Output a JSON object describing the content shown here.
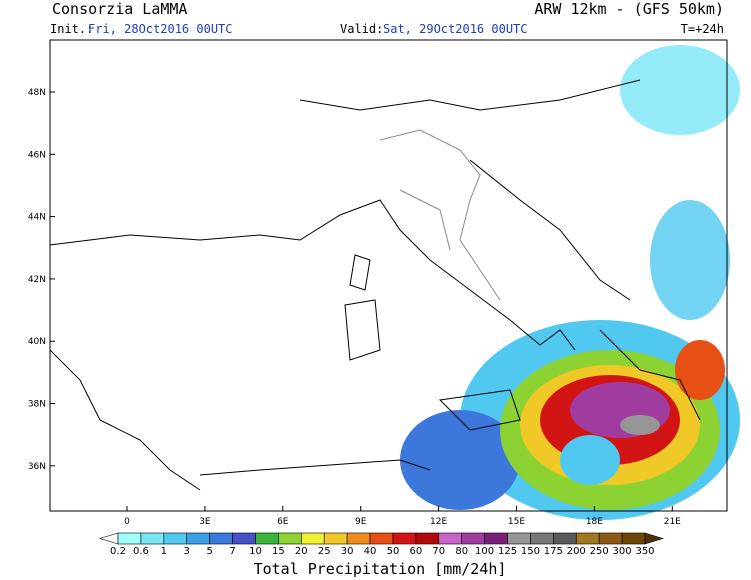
{
  "header": {
    "source": "Consorzia LaMMA",
    "model": "ARW 12km - (GFS 50km)",
    "init_label": "Init.:",
    "init_value": "Fri, 28Oct2016 00UTC",
    "valid_label": "Valid:",
    "valid_value": "Sat, 29Oct2016 00UTC",
    "lead_time": "T=+24h"
  },
  "map": {
    "lat_labels": [
      "48N",
      "46N",
      "44N",
      "42N",
      "40N",
      "38N",
      "36N"
    ],
    "lon_labels": [
      "0",
      "3E",
      "6E",
      "9E",
      "12E",
      "15E",
      "18E",
      "21E"
    ]
  },
  "colorbar": {
    "labels": [
      "0.2",
      "0.6",
      "1",
      "3",
      "5",
      "7",
      "10",
      "15",
      "20",
      "25",
      "30",
      "40",
      "50",
      "60",
      "70",
      "80",
      "100",
      "125",
      "150",
      "175",
      "200",
      "250",
      "300",
      "350"
    ],
    "colors": [
      "#ffffff",
      "#a0fffa",
      "#78e6f5",
      "#50c8f0",
      "#3ca0e6",
      "#3c78dc",
      "#4650c8",
      "#3cb43c",
      "#8cd232",
      "#f0f032",
      "#f0c828",
      "#f08c1e",
      "#e65014",
      "#d21414",
      "#b40a0a",
      "#c864c8",
      "#a03ca0",
      "#7d1e7d",
      "#969696",
      "#787878",
      "#5a5a5a",
      "#a0781e",
      "#8c5a14",
      "#6e460a",
      "#50300a"
    ],
    "caption": "Total Precipitation [mm/24h]"
  }
}
